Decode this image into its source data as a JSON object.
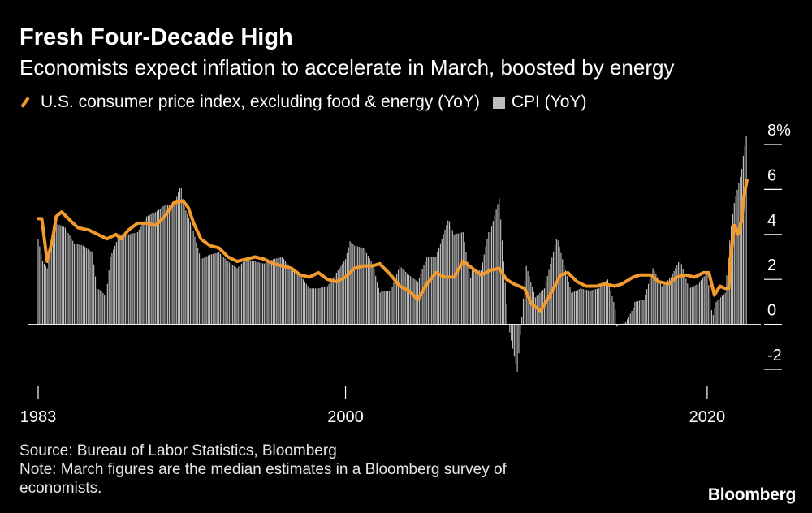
{
  "chart_data": {
    "type": "bar+line",
    "title": "Fresh Four-Decade High",
    "subtitle": "Economists expect inflation to accelerate in March, boosted by energy",
    "legend": [
      {
        "name": "U.S. consumer price index, excluding food & energy (YoY)",
        "kind": "line",
        "color": "#f39a2e"
      },
      {
        "name": "CPI (YoY)",
        "kind": "bar",
        "color": "#bdbdbd"
      }
    ],
    "x_ticks": [
      "1983",
      "2000",
      "2020"
    ],
    "x_tick_values": [
      1983,
      2000,
      2020
    ],
    "xlim": [
      1983.0,
      2022.25
    ],
    "ylim": [
      -2,
      8
    ],
    "y_ticks": [
      8,
      6,
      4,
      2,
      0,
      -2
    ],
    "y_tick_labels": [
      "8%",
      "6",
      "4",
      "2",
      "0",
      "-2"
    ],
    "ylabel": "",
    "xlabel": "",
    "series": [
      {
        "name": "CPI (YoY)",
        "type": "bar",
        "points": [
          [
            1983.0,
            3.8
          ],
          [
            1983.25,
            2.8
          ],
          [
            1983.5,
            2.5
          ],
          [
            1983.75,
            3.6
          ],
          [
            1984.0,
            4.5
          ],
          [
            1984.5,
            4.3
          ],
          [
            1985.0,
            3.6
          ],
          [
            1985.5,
            3.5
          ],
          [
            1986.0,
            3.2
          ],
          [
            1986.25,
            1.6
          ],
          [
            1986.5,
            1.5
          ],
          [
            1986.75,
            1.2
          ],
          [
            1987.0,
            3.0
          ],
          [
            1987.5,
            4.0
          ],
          [
            1988.0,
            4.0
          ],
          [
            1988.5,
            4.1
          ],
          [
            1989.0,
            4.8
          ],
          [
            1989.5,
            5.0
          ],
          [
            1990.0,
            5.3
          ],
          [
            1990.5,
            5.3
          ],
          [
            1990.9,
            6.2
          ],
          [
            1991.0,
            5.4
          ],
          [
            1991.5,
            4.4
          ],
          [
            1992.0,
            2.9
          ],
          [
            1992.5,
            3.1
          ],
          [
            1993.0,
            3.2
          ],
          [
            1993.5,
            2.8
          ],
          [
            1994.0,
            2.5
          ],
          [
            1994.5,
            2.9
          ],
          [
            1995.0,
            2.8
          ],
          [
            1995.5,
            2.7
          ],
          [
            1996.0,
            2.9
          ],
          [
            1996.5,
            3.0
          ],
          [
            1997.0,
            2.5
          ],
          [
            1997.5,
            2.2
          ],
          [
            1998.0,
            1.6
          ],
          [
            1998.5,
            1.6
          ],
          [
            1999.0,
            1.7
          ],
          [
            1999.5,
            2.3
          ],
          [
            2000.0,
            2.9
          ],
          [
            2000.25,
            3.7
          ],
          [
            2000.5,
            3.5
          ],
          [
            2001.0,
            3.4
          ],
          [
            2001.5,
            2.7
          ],
          [
            2001.9,
            1.4
          ],
          [
            2002.0,
            1.5
          ],
          [
            2002.5,
            1.5
          ],
          [
            2003.0,
            2.6
          ],
          [
            2003.5,
            2.2
          ],
          [
            2004.0,
            1.9
          ],
          [
            2004.5,
            3.0
          ],
          [
            2005.0,
            3.0
          ],
          [
            2005.7,
            4.7
          ],
          [
            2006.0,
            4.0
          ],
          [
            2006.5,
            4.1
          ],
          [
            2006.9,
            2.0
          ],
          [
            2007.0,
            2.4
          ],
          [
            2007.5,
            2.4
          ],
          [
            2007.9,
            4.1
          ],
          [
            2008.0,
            4.1
          ],
          [
            2008.5,
            5.6
          ],
          [
            2008.9,
            1.1
          ],
          [
            2009.0,
            0.0
          ],
          [
            2009.3,
            -1.3
          ],
          [
            2009.5,
            -2.1
          ],
          [
            2009.9,
            1.8
          ],
          [
            2010.0,
            2.6
          ],
          [
            2010.5,
            1.2
          ],
          [
            2011.0,
            1.6
          ],
          [
            2011.7,
            3.9
          ],
          [
            2012.0,
            2.9
          ],
          [
            2012.5,
            1.4
          ],
          [
            2013.0,
            1.6
          ],
          [
            2013.5,
            1.5
          ],
          [
            2014.0,
            1.6
          ],
          [
            2014.5,
            2.0
          ],
          [
            2014.9,
            0.8
          ],
          [
            2015.0,
            -0.1
          ],
          [
            2015.5,
            0.1
          ],
          [
            2015.9,
            0.7
          ],
          [
            2016.0,
            1.0
          ],
          [
            2016.5,
            1.1
          ],
          [
            2017.0,
            2.5
          ],
          [
            2017.5,
            1.7
          ],
          [
            2018.0,
            2.1
          ],
          [
            2018.5,
            2.9
          ],
          [
            2019.0,
            1.6
          ],
          [
            2019.5,
            1.8
          ],
          [
            2020.0,
            2.3
          ],
          [
            2020.3,
            0.3
          ],
          [
            2020.5,
            1.0
          ],
          [
            2021.0,
            1.4
          ],
          [
            2021.3,
            4.2
          ],
          [
            2021.5,
            5.4
          ],
          [
            2021.9,
            6.8
          ],
          [
            2022.0,
            7.5
          ],
          [
            2022.17,
            8.4
          ]
        ]
      },
      {
        "name": "U.S. consumer price index, excluding food & energy (YoY)",
        "type": "line",
        "points": [
          [
            1983.0,
            4.7
          ],
          [
            1983.2,
            4.7
          ],
          [
            1983.5,
            2.8
          ],
          [
            1983.8,
            3.8
          ],
          [
            1984.0,
            4.8
          ],
          [
            1984.3,
            5.0
          ],
          [
            1984.8,
            4.6
          ],
          [
            1985.2,
            4.3
          ],
          [
            1985.8,
            4.2
          ],
          [
            1986.3,
            4.0
          ],
          [
            1986.8,
            3.8
          ],
          [
            1987.3,
            4.0
          ],
          [
            1987.6,
            3.8
          ],
          [
            1988.0,
            4.2
          ],
          [
            1988.5,
            4.5
          ],
          [
            1989.0,
            4.5
          ],
          [
            1989.5,
            4.4
          ],
          [
            1990.0,
            4.8
          ],
          [
            1990.5,
            5.4
          ],
          [
            1991.0,
            5.5
          ],
          [
            1991.3,
            5.2
          ],
          [
            1991.6,
            4.5
          ],
          [
            1992.0,
            3.8
          ],
          [
            1992.5,
            3.5
          ],
          [
            1993.0,
            3.4
          ],
          [
            1993.5,
            3.0
          ],
          [
            1994.0,
            2.8
          ],
          [
            1994.5,
            2.9
          ],
          [
            1995.0,
            3.0
          ],
          [
            1995.5,
            2.9
          ],
          [
            1996.0,
            2.7
          ],
          [
            1996.5,
            2.6
          ],
          [
            1997.0,
            2.5
          ],
          [
            1997.5,
            2.2
          ],
          [
            1998.0,
            2.1
          ],
          [
            1998.5,
            2.3
          ],
          [
            1999.0,
            2.0
          ],
          [
            1999.5,
            1.9
          ],
          [
            2000.0,
            2.1
          ],
          [
            2000.5,
            2.5
          ],
          [
            2001.0,
            2.6
          ],
          [
            2001.5,
            2.6
          ],
          [
            2001.9,
            2.7
          ],
          [
            2002.0,
            2.6
          ],
          [
            2002.5,
            2.2
          ],
          [
            2003.0,
            1.7
          ],
          [
            2003.5,
            1.5
          ],
          [
            2004.0,
            1.1
          ],
          [
            2004.5,
            1.8
          ],
          [
            2005.0,
            2.3
          ],
          [
            2005.5,
            2.1
          ],
          [
            2006.0,
            2.1
          ],
          [
            2006.5,
            2.8
          ],
          [
            2007.0,
            2.5
          ],
          [
            2007.5,
            2.2
          ],
          [
            2008.0,
            2.4
          ],
          [
            2008.5,
            2.5
          ],
          [
            2008.9,
            2.0
          ],
          [
            2009.3,
            1.8
          ],
          [
            2009.9,
            1.6
          ],
          [
            2010.3,
            0.9
          ],
          [
            2010.8,
            0.6
          ],
          [
            2011.3,
            1.3
          ],
          [
            2011.9,
            2.2
          ],
          [
            2012.3,
            2.3
          ],
          [
            2012.8,
            1.9
          ],
          [
            2013.3,
            1.7
          ],
          [
            2013.9,
            1.7
          ],
          [
            2014.3,
            1.8
          ],
          [
            2014.9,
            1.7
          ],
          [
            2015.3,
            1.8
          ],
          [
            2015.9,
            2.1
          ],
          [
            2016.3,
            2.2
          ],
          [
            2016.9,
            2.2
          ],
          [
            2017.3,
            1.9
          ],
          [
            2017.9,
            1.8
          ],
          [
            2018.3,
            2.1
          ],
          [
            2018.8,
            2.2
          ],
          [
            2019.3,
            2.1
          ],
          [
            2019.8,
            2.3
          ],
          [
            2020.1,
            2.3
          ],
          [
            2020.4,
            1.3
          ],
          [
            2020.7,
            1.7
          ],
          [
            2021.0,
            1.6
          ],
          [
            2021.2,
            1.6
          ],
          [
            2021.3,
            3.0
          ],
          [
            2021.5,
            4.4
          ],
          [
            2021.7,
            4.0
          ],
          [
            2021.9,
            4.6
          ],
          [
            2022.0,
            5.5
          ],
          [
            2022.1,
            6.0
          ],
          [
            2022.2,
            6.4
          ]
        ]
      }
    ]
  },
  "footer": {
    "source": "Source: Bureau of Labor Statistics, Bloomberg",
    "note_line1": "Note: March figures are the median estimates in a Bloomberg survey of",
    "note_line2": "economists.",
    "brand": "Bloomberg"
  },
  "colors": {
    "background": "#000000",
    "bars": "#bdbdbd",
    "line": "#f39a2e",
    "text": "#ffffff"
  }
}
